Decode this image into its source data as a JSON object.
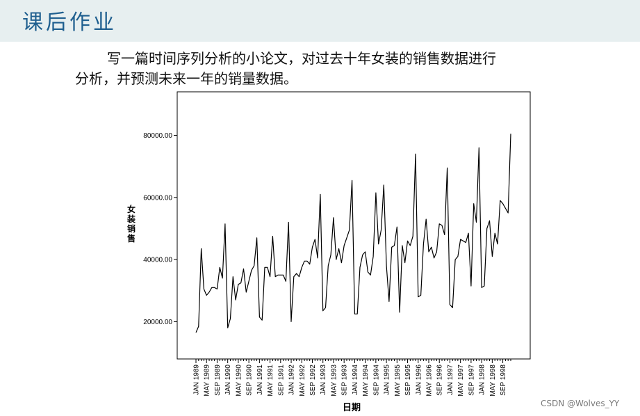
{
  "header": {
    "title": "课后作业"
  },
  "task": {
    "line1": "写一篇时间序列分析的小论文，对过去十年女装的销售数据进行",
    "line2": "分析，并预测未来一年的销量数据。"
  },
  "watermark": "CSDN @Wolves_YY",
  "colors": {
    "header_bg": "#e7eff0",
    "title": "#1f5f8f",
    "line": "#000000"
  },
  "chart_data": {
    "type": "line",
    "title": "",
    "xlabel": "日期",
    "ylabel": "女装销售",
    "ylim": [
      8000,
      94000
    ],
    "yticks": [
      20000,
      40000,
      60000,
      80000
    ],
    "ytick_labels": [
      "20000.00",
      "40000.00",
      "60000.00",
      "80000.00"
    ],
    "xtick_labels": [
      "JAN 1989",
      "MAY 1989",
      "SEP 1989",
      "JAN 1990",
      "MAY 1990",
      "SEP 1990",
      "JAN 1991",
      "MAY 1991",
      "SEP 1991",
      "JAN 1992",
      "MAY 1992",
      "SEP 1992",
      "JAN 1993",
      "MAY 1993",
      "SEP 1993",
      "JAN 1994",
      "MAY 1994",
      "SEP 1994",
      "JAN 1995",
      "MAY 1995",
      "SEP 1995",
      "JAN 1996",
      "MAY 1996",
      "SEP 1996",
      "JAN 1997",
      "MAY 1997",
      "SEP 1997",
      "JAN 1998",
      "MAY 1998",
      "SEP 1998"
    ],
    "start": "JAN 1989",
    "grid": false,
    "legend": "none",
    "series": [
      {
        "values": [
          16500,
          18500,
          43500,
          30500,
          28500,
          29500,
          31000,
          31000,
          30500,
          37500,
          34000,
          51500,
          18000,
          21000,
          34500,
          27000,
          32000,
          32500,
          37000,
          29500,
          33000,
          36500,
          38000,
          47000,
          21500,
          20500,
          37500,
          37500,
          34500,
          47500,
          34500,
          35000,
          35000,
          35000,
          33000,
          52000,
          20000,
          34500,
          35500,
          34500,
          37500,
          39500,
          39500,
          38500,
          44000,
          46500,
          40500,
          61000,
          23500,
          24500,
          38000,
          41500,
          53500,
          40000,
          43500,
          39000,
          44500,
          47000,
          49500,
          65500,
          22500,
          22500,
          37500,
          41500,
          42500,
          36000,
          35000,
          41000,
          61500,
          45000,
          49500,
          64000,
          38000,
          26500,
          44000,
          44500,
          50500,
          23000,
          44500,
          39000,
          46000,
          44500,
          47500,
          74000,
          28000,
          28500,
          45000,
          53000,
          42500,
          44000,
          40500,
          42500,
          51500,
          51000,
          48000,
          69500,
          25500,
          24500,
          40000,
          41000,
          46500,
          46000,
          45500,
          48500,
          31500,
          58000,
          52000,
          76000,
          31000,
          31500,
          50000,
          52500,
          41000,
          48500,
          45000,
          59000,
          58000,
          56500,
          55000,
          80500
        ]
      }
    ]
  }
}
